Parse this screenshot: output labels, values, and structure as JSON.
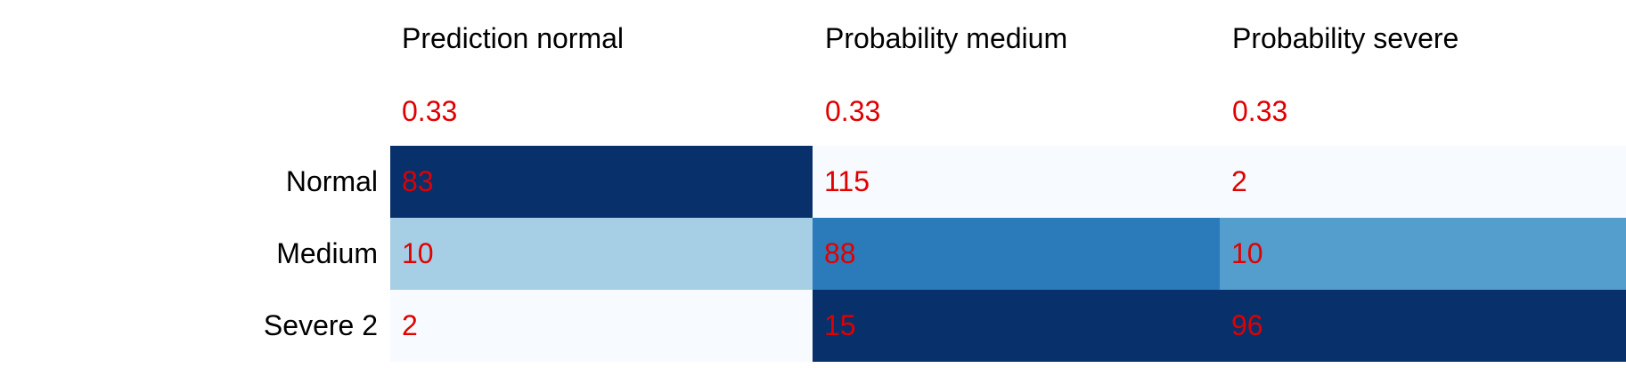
{
  "chart_data": {
    "type": "heatmap",
    "columns": [
      "Prediction normal",
      "Probability medium",
      "Probability severe"
    ],
    "column_values": [
      "0.33",
      "0.33",
      "0.33"
    ],
    "rows": [
      "Normal",
      "Medium",
      "Severe 2"
    ],
    "values": [
      [
        83,
        115,
        2
      ],
      [
        10,
        88,
        10
      ],
      [
        2,
        15,
        96
      ]
    ],
    "cell_colors": [
      [
        "#08306b",
        "#f7fbff",
        "#f7fbff"
      ],
      [
        "#a6cee4",
        "#2b7bba",
        "#539ecd"
      ],
      [
        "#f7fbff",
        "#08306b",
        "#08306b"
      ]
    ],
    "value_color": "#e00000",
    "label_color": "#000000"
  }
}
